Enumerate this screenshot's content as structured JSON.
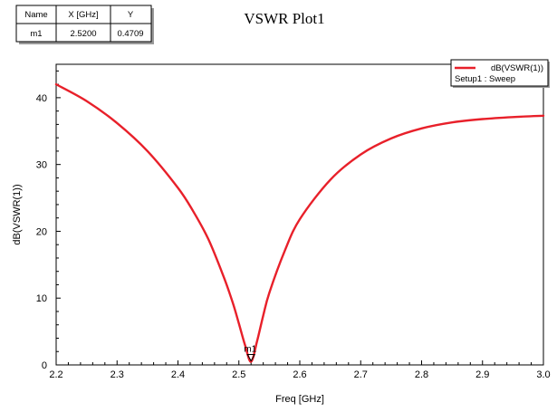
{
  "marker_table": {
    "headers": [
      "Name",
      "X [GHz]",
      "Y"
    ],
    "rows": [
      [
        "m1",
        "2.5200",
        "0.4709"
      ]
    ]
  },
  "chart_data": {
    "type": "line",
    "title": "VSWR Plot1",
    "xlabel": "Freq [GHz]",
    "ylabel": "dB(VSWR(1))",
    "xlim": [
      2.2,
      3.0
    ],
    "ylim": [
      0,
      45
    ],
    "x_ticks": [
      "2.2",
      "2.3",
      "2.4",
      "2.5",
      "2.6",
      "2.7",
      "2.8",
      "2.9",
      "3.0"
    ],
    "y_ticks": [
      "0",
      "10",
      "20",
      "30",
      "40"
    ],
    "grid": false,
    "legend": {
      "placement": "top-right",
      "entry": "dB(VSWR(1))",
      "subtitle": "Setup1 : Sweep"
    },
    "series": [
      {
        "name": "dB(VSWR(1))",
        "color": "#e8202a",
        "x": [
          2.2,
          2.25,
          2.3,
          2.35,
          2.4,
          2.425,
          2.45,
          2.475,
          2.49,
          2.5,
          2.51,
          2.52,
          2.53,
          2.54,
          2.55,
          2.575,
          2.6,
          2.65,
          2.7,
          2.75,
          2.8,
          2.85,
          2.9,
          2.95,
          3.0
        ],
        "y": [
          42.0,
          39.5,
          36.2,
          32.0,
          26.5,
          23.0,
          18.8,
          13.2,
          9.3,
          6.2,
          3.0,
          0.47,
          3.6,
          7.4,
          10.8,
          17.0,
          21.8,
          27.7,
          31.5,
          33.9,
          35.4,
          36.3,
          36.8,
          37.1,
          37.3
        ]
      }
    ],
    "markers": [
      {
        "name": "m1",
        "x": 2.52,
        "y": 0.4709
      }
    ]
  }
}
